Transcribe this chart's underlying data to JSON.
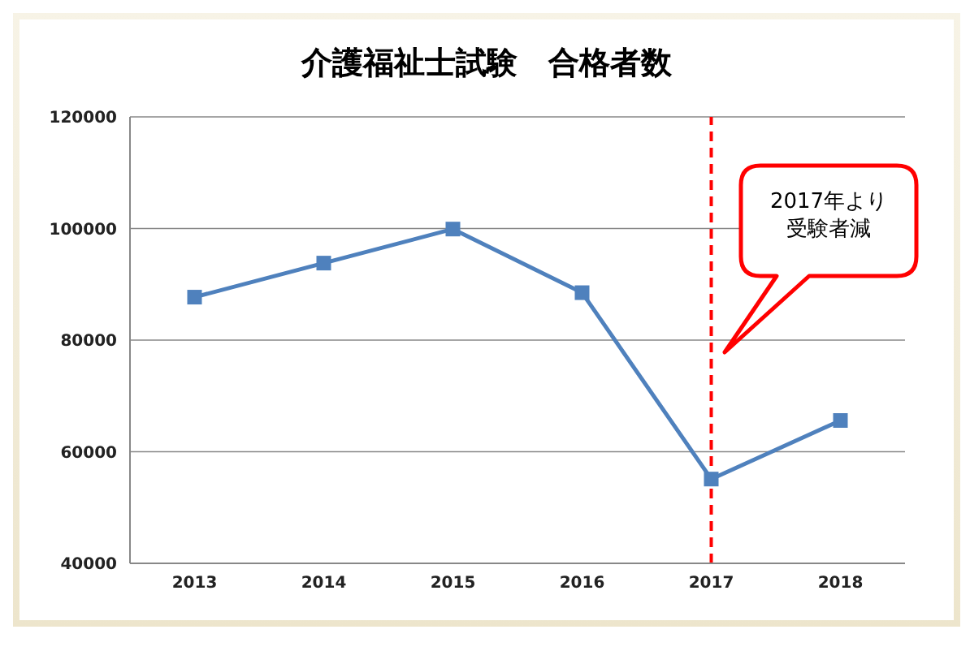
{
  "chart_data": {
    "type": "line",
    "title": "介護福祉士試験　合格者数",
    "x": [
      2013,
      2014,
      2015,
      2016,
      2017,
      2018
    ],
    "xlim": [
      2012.5,
      2018.5
    ],
    "xticks": [
      2013,
      2014,
      2015,
      2016,
      2017,
      2018
    ],
    "series": [
      {
        "color": "#4f81bd",
        "values": [
          87700,
          93800,
          99900,
          88500,
          55100,
          65600
        ]
      }
    ],
    "ylim": [
      40000,
      120000
    ],
    "yticks": [
      40000,
      60000,
      80000,
      100000,
      120000
    ],
    "grid": "y",
    "marker": "square",
    "line_style": "solid",
    "legend": false,
    "ref_lines": [
      {
        "axis": "x",
        "value": 2017,
        "color": "#ff0000",
        "line_style": "dashed"
      }
    ],
    "annotations": [
      "2017年より受験者減"
    ]
  }
}
